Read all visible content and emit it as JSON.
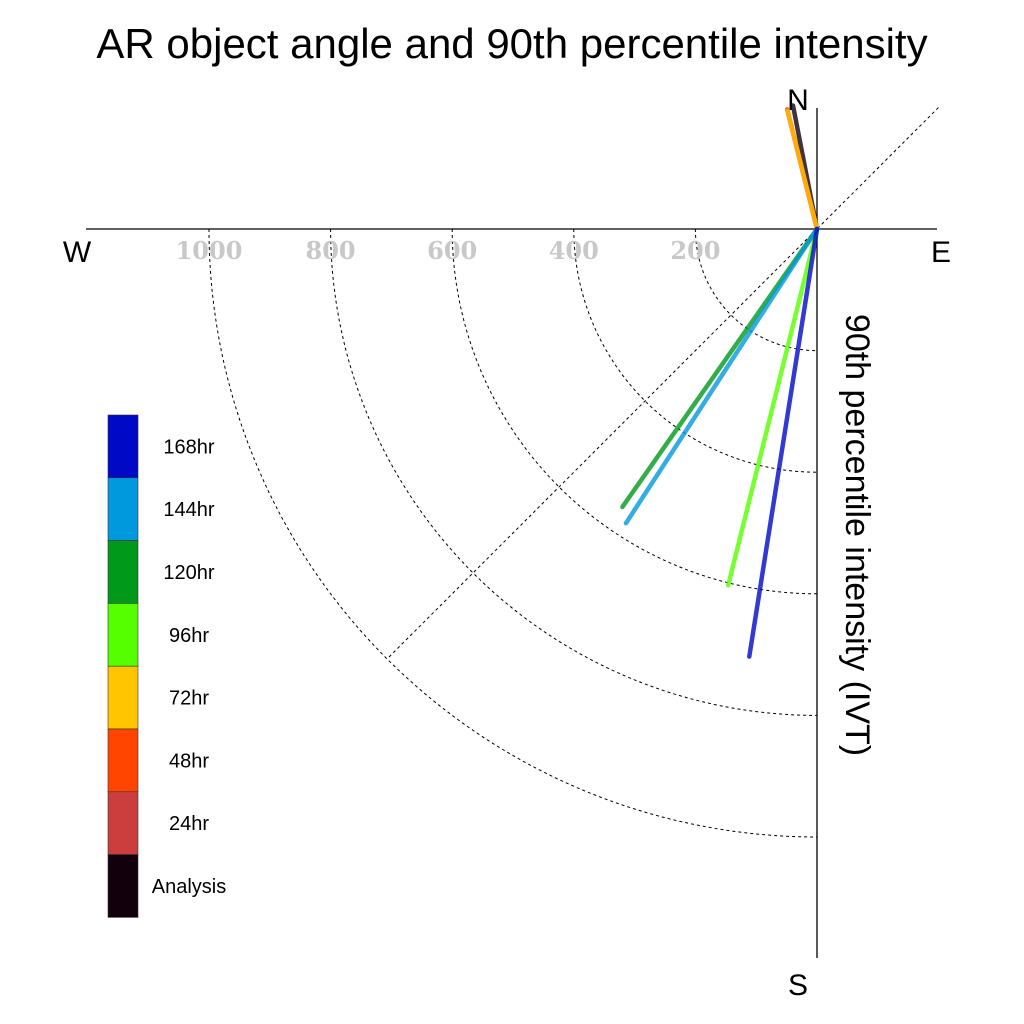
{
  "chart_data": {
    "type": "polar-vector",
    "title": "AR object angle and 90th percentile intensity",
    "ylabel": "90th percentile intensity (IVT)",
    "compass": {
      "north": "N",
      "south": "S",
      "east": "E",
      "west": "W"
    },
    "radial_ticks": [
      200,
      400,
      600,
      800,
      1000
    ],
    "radial_tick_labels": [
      "200",
      "400",
      "600",
      "800",
      "1000"
    ],
    "radial_max": 1000,
    "grid": true,
    "legend_position": "left",
    "series": [
      {
        "name": "168hr",
        "color": "#0009c6",
        "angle_deg": 189,
        "intensity": 712
      },
      {
        "name": "144hr",
        "color": "#0099dd",
        "angle_deg": 213,
        "intensity": 577
      },
      {
        "name": "120hr",
        "color": "#00991a",
        "angle_deg": 215,
        "intensity": 558
      },
      {
        "name": "96hr",
        "color": "#55ff00",
        "angle_deg": 194,
        "intensity": 604
      },
      {
        "name": "72hr",
        "color": "#ffc600",
        "angle_deg": 346,
        "intensity": 200
      },
      {
        "name": "48hr",
        "color": "#ff4500",
        "angle_deg": 346,
        "intensity": 203
      },
      {
        "name": "24hr",
        "color": "#cc3d3d",
        "angle_deg": 346,
        "intensity": 200
      },
      {
        "name": "Analysis",
        "color": "#12000d",
        "angle_deg": 349,
        "intensity": 207
      }
    ],
    "draw_order": [
      "Analysis",
      "24hr",
      "48hr",
      "72hr",
      "96hr",
      "120hr",
      "144hr",
      "168hr"
    ]
  }
}
